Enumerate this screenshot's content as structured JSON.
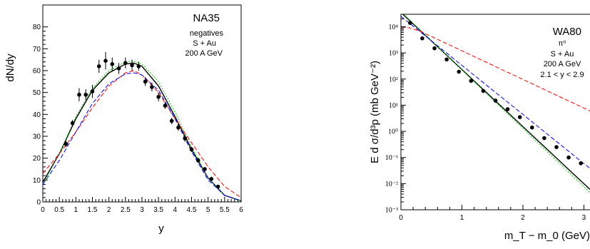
{
  "chart_data": [
    {
      "type": "scatter",
      "ylabel": "dN/dy",
      "xlabel": "y",
      "xlim": [
        0,
        6
      ],
      "ylim": [
        0,
        90
      ],
      "x_ticks": [
        "0",
        "0.5",
        "1",
        "1.5",
        "2",
        "2.5",
        "3",
        "3.5",
        "4",
        "4.5",
        "5",
        "5.5",
        "6"
      ],
      "y_ticks": [
        "0",
        "10",
        "20",
        "30",
        "40",
        "50",
        "60",
        "70",
        "80"
      ],
      "annotations": [
        "NA35",
        "negatives",
        "S + Au",
        "200 A GeV"
      ],
      "colors": {
        "black": "#000000",
        "green": "#00cc00",
        "red": "#ff0000",
        "blue": "#0000ff"
      },
      "points": {
        "x": [
          0.7,
          0.9,
          1.1,
          1.3,
          1.5,
          1.7,
          1.9,
          2.1,
          2.3,
          2.5,
          2.7,
          2.9,
          3.1,
          3.3,
          3.5,
          3.7,
          3.9,
          4.1,
          4.3,
          4.5,
          4.7,
          4.9,
          5.1,
          5.3
        ],
        "y": [
          26.5,
          36,
          49,
          49,
          50.5,
          62,
          64.5,
          63,
          61,
          63.5,
          62.5,
          62,
          55,
          52.5,
          48,
          44,
          37,
          34,
          29,
          24,
          19,
          15,
          10.5,
          7
        ],
        "err": [
          1.5,
          1.5,
          3,
          2.5,
          3,
          3,
          4,
          3,
          2.5,
          2.5,
          2.5,
          2,
          2,
          2,
          2,
          1.5,
          1.5,
          1.5,
          1.5,
          1.2,
          1.2,
          1,
          1,
          0.8
        ]
      },
      "series": [
        {
          "color": "black",
          "style": "solid",
          "x": [
            0,
            0.5,
            1,
            1.5,
            2,
            2.5,
            2.75,
            3,
            3.5,
            4,
            4.5,
            5,
            5.5,
            6
          ],
          "y": [
            9,
            22,
            38,
            51,
            59,
            63,
            63.5,
            62,
            53,
            39,
            24,
            11,
            3,
            0.5
          ]
        },
        {
          "color": "green",
          "style": "dotted",
          "x": [
            0,
            0.5,
            1,
            1.5,
            2,
            2.5,
            2.75,
            3,
            3.5,
            4,
            4.5,
            5,
            5.5,
            6
          ],
          "y": [
            8,
            22,
            39,
            52,
            60,
            64,
            64.3,
            63,
            55,
            41,
            25,
            11,
            3,
            0.5
          ]
        },
        {
          "color": "red",
          "style": "dashed",
          "x": [
            0,
            0.5,
            1,
            1.5,
            2,
            2.5,
            2.75,
            3,
            3.5,
            4,
            4.5,
            5,
            5.5,
            6
          ],
          "y": [
            13,
            22,
            32,
            43,
            53,
            59,
            60,
            58,
            50,
            38,
            27,
            16,
            7,
            2
          ]
        },
        {
          "color": "blue",
          "style": "dashed",
          "x": [
            0,
            0.5,
            1,
            1.5,
            2,
            2.5,
            2.75,
            3,
            3.5,
            4,
            4.5,
            5,
            5.5,
            6
          ],
          "y": [
            8,
            19,
            32,
            45,
            54,
            58.5,
            59,
            58,
            51,
            38,
            23,
            10,
            3,
            0.5
          ]
        }
      ]
    },
    {
      "type": "scatter",
      "log_y": true,
      "ylabel": "E d σ/d³p (mb GeV⁻²)",
      "xlabel": "m_T − m_0 (GeV)",
      "xlim": [
        0,
        3.1
      ],
      "ylim": [
        0.001,
        30000
      ],
      "x_ticks": [
        "0",
        "1",
        "2",
        "3"
      ],
      "y_ticks": [
        "10⁻³",
        "10⁻²",
        "10⁻¹",
        "10⁰",
        "10¹",
        "10²",
        "10³",
        "10⁴"
      ],
      "annotations": [
        "WA80",
        "π⁰",
        "S + Au",
        "200 A GeV",
        "2.1 < y < 2.9"
      ],
      "points": {
        "x": [
          0.15,
          0.35,
          0.55,
          0.75,
          0.95,
          1.15,
          1.35,
          1.55,
          1.75,
          1.95,
          2.15,
          2.35,
          2.55,
          2.75,
          2.95
        ],
        "y": [
          14000,
          3600,
          1500,
          560,
          190,
          85,
          35,
          15,
          7,
          3.5,
          1.4,
          0.55,
          0.25,
          0.1,
          0.06
        ]
      },
      "series": [
        {
          "color": "black",
          "style": "solid",
          "x": [
            0,
            3.1
          ],
          "y": [
            35000,
            0.006
          ]
        },
        {
          "color": "green",
          "style": "dotted",
          "x": [
            0,
            3.1
          ],
          "y": [
            38000,
            0.0045
          ]
        },
        {
          "color": "blue",
          "style": "dashed",
          "x": [
            0,
            3.1
          ],
          "y": [
            25000,
            0.038
          ]
        },
        {
          "color": "red",
          "style": "dashed",
          "x": [
            0,
            0.1,
            0.3,
            3.1
          ],
          "y": [
            9000,
            9500,
            7000,
            6
          ]
        }
      ]
    }
  ]
}
